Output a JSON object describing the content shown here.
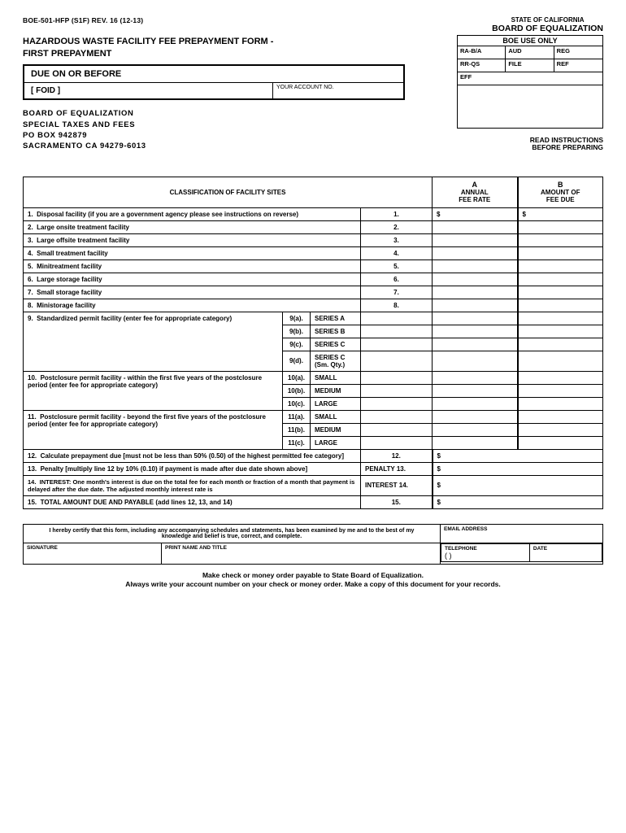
{
  "form_id": "BOE-501-HFP (S1F) REV. 16 (12-13)",
  "state": "STATE OF CALIFORNIA",
  "board": "BOARD OF EQUALIZATION",
  "title_1": "HAZARDOUS WASTE FACILITY FEE PREPAYMENT FORM -",
  "title_2": "FIRST PREPAYMENT",
  "boe_use": {
    "title": "BOE USE ONLY",
    "cells": [
      "RA-B/A",
      "AUD",
      "REG",
      "RR-QS",
      "FILE",
      "REF"
    ],
    "eff": "EFF"
  },
  "due_label": "DUE ON OR BEFORE",
  "foid": "[   FOID                      ]",
  "acct_label": "YOUR ACCOUNT NO.",
  "address": {
    "l1": "BOARD OF EQUALIZATION",
    "l2": "SPECIAL TAXES AND FEES",
    "l3": "PO BOX 942879",
    "l4": "SACRAMENTO CA 94279-6013"
  },
  "read_instr_1": "READ INSTRUCTIONS",
  "read_instr_2": "BEFORE PREPARING",
  "table": {
    "hdr_class": "CLASSIFICATION OF FACILITY SITES",
    "hdr_a1": "A",
    "hdr_a2": "ANNUAL",
    "hdr_a3": "FEE RATE",
    "hdr_b1": "B",
    "hdr_b2": "AMOUNT OF",
    "hdr_b3": "FEE DUE",
    "rows": [
      {
        "n": "1.",
        "d": "Disposal facility (if you are a government agency please see instructions on reverse)",
        "r": "1."
      },
      {
        "n": "2.",
        "d": "Large onsite treatment facility",
        "r": "2."
      },
      {
        "n": "3.",
        "d": "Large offsite treatment facility",
        "r": "3."
      },
      {
        "n": "4.",
        "d": "Small treatment facility",
        "r": "4."
      },
      {
        "n": "5.",
        "d": "Minitreatment facility",
        "r": "5."
      },
      {
        "n": "6.",
        "d": "Large storage facility",
        "r": "6."
      },
      {
        "n": "7.",
        "d": "Small storage facility",
        "r": "7."
      },
      {
        "n": "8.",
        "d": "Ministorage facility",
        "r": "8."
      }
    ],
    "row9_d": "Standardized permit facility (enter fee for appropriate category)",
    "row9": [
      {
        "s": "9(a).",
        "l": "SERIES A"
      },
      {
        "s": "9(b).",
        "l": "SERIES B"
      },
      {
        "s": "9(c).",
        "l": "SERIES C"
      },
      {
        "s": "9(d).",
        "l": "SERIES C (Sm. Qty.)"
      }
    ],
    "row10_d": "Postclosure permit facility - within the first five years of the postclosure period (enter fee for appropriate category)",
    "row10": [
      {
        "s": "10(a).",
        "l": "SMALL"
      },
      {
        "s": "10(b).",
        "l": "MEDIUM"
      },
      {
        "s": "10(c).",
        "l": "LARGE"
      }
    ],
    "row11_d": "Postclosure permit facility - beyond the first five years of the postclosure period (enter fee for appropriate category)",
    "row11": [
      {
        "s": "11(a).",
        "l": "SMALL"
      },
      {
        "s": "11(b).",
        "l": "MEDIUM"
      },
      {
        "s": "11(c).",
        "l": "LARGE"
      }
    ],
    "row12_d": "Calculate prepayment due [must not be less than 50% (0.50) of the highest permitted fee category]",
    "row12_r": "12.",
    "row13_d": "Penalty  [multiply line 12 by 10% (0.10) if payment is made after due date shown above]",
    "row13_l": "PENALTY  13.",
    "row14_d": "INTEREST: One month's interest is due on the total fee for each month or fraction of a month that payment is delayed after the due date. The adjusted monthly interest rate is",
    "row14_l": "INTEREST 14.",
    "row15_d": "TOTAL AMOUNT DUE AND PAYABLE  (add lines 12, 13, and 14)",
    "row15_r": "15.",
    "n9": "9.",
    "n10": "10.",
    "n11": "11.",
    "n12": "12.",
    "n13": "13.",
    "n14": "14.",
    "n15": "15.",
    "dollar": "$"
  },
  "cert": "I hereby certify that this form, including any accompanying schedules and statements, has been examined by me and to the best of my knowledge and belief is true, correct, and complete.",
  "sig_labels": {
    "sig": "SIGNATURE",
    "print": "PRINT NAME AND TITLE",
    "email": "EMAIL ADDRESS",
    "tel": "TELEPHONE",
    "date": "DATE",
    "parens": "(          )"
  },
  "footer_1": "Make check or money order payable to State Board of Equalization.",
  "footer_2": "Always write your account number on your check or money order. Make a copy of this document for your records."
}
